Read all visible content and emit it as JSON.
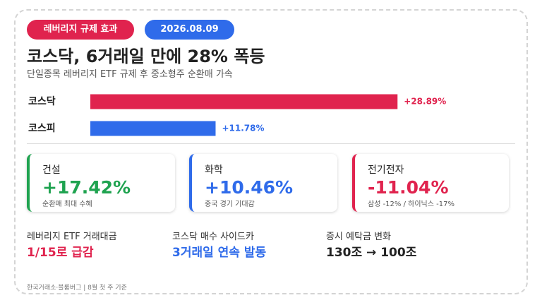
{
  "badge": "레버리지 규제 효과",
  "date": "2026.08.09",
  "title": "코스닥, 6거래일 만에 28% 폭등",
  "subtitle": "단일종목 레버리지 ETF 규제 후 중소형주 순환매 가속",
  "chart_data": {
    "type": "bar",
    "orientation": "horizontal",
    "categories": [
      "코스닥",
      "코스피"
    ],
    "values": [
      28.89,
      11.78
    ],
    "value_labels": [
      "+28.89%",
      "+11.78%"
    ],
    "colors": [
      "#e0234e",
      "#2f6bea"
    ],
    "xlim": [
      0,
      30
    ]
  },
  "cards": [
    {
      "title": "건설",
      "value": "+17.42%",
      "note": "순환매 최대 수혜",
      "color": "#1fa350"
    },
    {
      "title": "화학",
      "value": "+10.46%",
      "note": "중국 경기 기대감",
      "color": "#2f6bea"
    },
    {
      "title": "전기전자",
      "value": "-11.04%",
      "note": "삼성 -12% / 하이닉스 -17%",
      "color": "#e0234e"
    }
  ],
  "stats": [
    {
      "label": "레버리지 ETF 거래대금",
      "value": "1/15로 급감",
      "color": "#e0234e"
    },
    {
      "label": "코스닥 매수 사이드카",
      "value": "3거래일 연속 발동",
      "color": "#2f6bea"
    },
    {
      "label": "증시 예탁금 변화",
      "value": "130조 → 100조",
      "color": "#222222"
    }
  ],
  "footer": "한국거래소·블룸버그 | 8월 첫 주 기준"
}
